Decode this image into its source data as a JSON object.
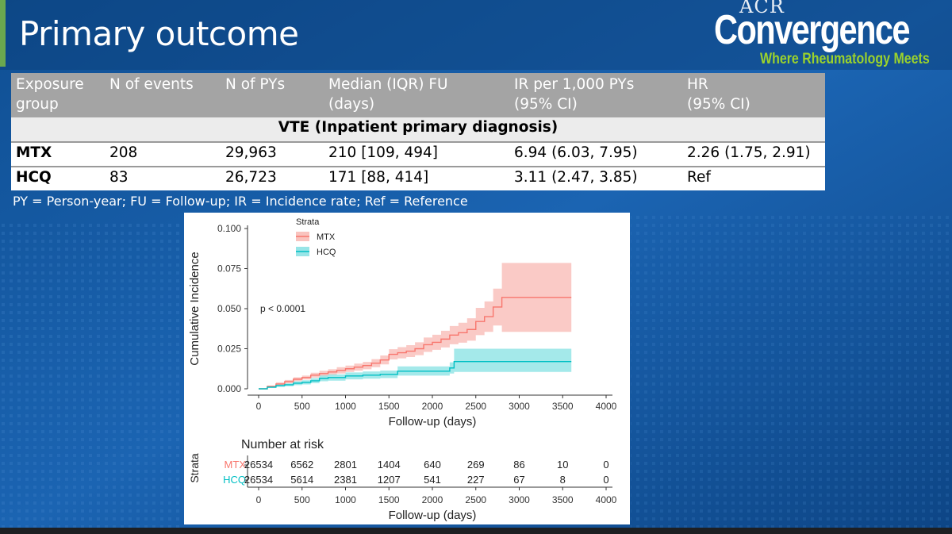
{
  "slide": {
    "title": "Primary outcome",
    "logo": {
      "line1": "ACR",
      "line2": "Convergence",
      "tagline": "Where Rheumatology Meets"
    },
    "footnote": "PY = Person-year; FU = Follow-up; IR = Incidence rate; Ref = Reference"
  },
  "table": {
    "headers": [
      [
        "Exposure",
        "group"
      ],
      [
        "N of events",
        ""
      ],
      [
        "N of PYs",
        ""
      ],
      [
        "Median (IQR) FU",
        "(days)"
      ],
      [
        "IR per 1,000 PYs",
        "(95% CI)"
      ],
      [
        "HR",
        "(95% CI)"
      ]
    ],
    "section": "VTE (Inpatient primary diagnosis)",
    "rows": [
      [
        "MTX",
        "208",
        "29,963",
        "210 [109, 494]",
        "6.94 (6.03, 7.95)",
        "2.26 (1.75, 2.91)"
      ],
      [
        "HCQ",
        "83",
        "26,723",
        "171 [88, 414]",
        "3.11 (2.47, 3.85)",
        "Ref"
      ]
    ]
  },
  "chart_data": {
    "type": "line",
    "legend_title": "Strata",
    "legend_position": "top-left",
    "xlabel": "Follow-up (days)",
    "ylabel": "Cumulative Incidence",
    "xlim": [
      0,
      4000
    ],
    "ylim": [
      0,
      0.1
    ],
    "x_ticks": [
      "0",
      "500",
      "1000",
      "1500",
      "2000",
      "2500",
      "3000",
      "3500",
      "4000"
    ],
    "y_ticks": [
      "0.000",
      "0.025",
      "0.050",
      "0.075",
      "0.100"
    ],
    "annotation": "p < 0.0001",
    "grid": false,
    "series": [
      {
        "name": "MTX",
        "color": "#f8766d",
        "band_color": "#f8b4ae",
        "points": [
          [
            0,
            0
          ],
          [
            100,
            0.0015
          ],
          [
            200,
            0.003
          ],
          [
            300,
            0.0045
          ],
          [
            400,
            0.006
          ],
          [
            500,
            0.007
          ],
          [
            600,
            0.0085
          ],
          [
            700,
            0.0095
          ],
          [
            800,
            0.0105
          ],
          [
            900,
            0.0115
          ],
          [
            1000,
            0.0125
          ],
          [
            1100,
            0.0135
          ],
          [
            1200,
            0.0145
          ],
          [
            1300,
            0.016
          ],
          [
            1400,
            0.018
          ],
          [
            1500,
            0.0215
          ],
          [
            1600,
            0.0225
          ],
          [
            1700,
            0.0235
          ],
          [
            1800,
            0.025
          ],
          [
            1900,
            0.0275
          ],
          [
            2000,
            0.029
          ],
          [
            2100,
            0.031
          ],
          [
            2200,
            0.0335
          ],
          [
            2300,
            0.035
          ],
          [
            2400,
            0.037
          ],
          [
            2500,
            0.042
          ],
          [
            2600,
            0.045
          ],
          [
            2700,
            0.051
          ],
          [
            2800,
            0.057
          ],
          [
            3000,
            0.057
          ],
          [
            3600,
            0.057
          ]
        ],
        "lower": [
          [
            0,
            0
          ],
          [
            100,
            0.001
          ],
          [
            200,
            0.002
          ],
          [
            300,
            0.0035
          ],
          [
            400,
            0.0048
          ],
          [
            500,
            0.0058
          ],
          [
            600,
            0.007
          ],
          [
            700,
            0.0078
          ],
          [
            800,
            0.0088
          ],
          [
            900,
            0.0095
          ],
          [
            1000,
            0.0105
          ],
          [
            1100,
            0.0113
          ],
          [
            1200,
            0.0122
          ],
          [
            1300,
            0.0135
          ],
          [
            1400,
            0.0152
          ],
          [
            1500,
            0.0183
          ],
          [
            1600,
            0.019
          ],
          [
            1700,
            0.0198
          ],
          [
            1800,
            0.021
          ],
          [
            1900,
            0.023
          ],
          [
            2000,
            0.0243
          ],
          [
            2100,
            0.0258
          ],
          [
            2200,
            0.0278
          ],
          [
            2300,
            0.0288
          ],
          [
            2400,
            0.03
          ],
          [
            2500,
            0.0335
          ],
          [
            2600,
            0.0355
          ],
          [
            2700,
            0.0395
          ],
          [
            2800,
            0.0355
          ],
          [
            3000,
            0.0355
          ],
          [
            3600,
            0.0355
          ]
        ],
        "upper": [
          [
            0,
            0
          ],
          [
            100,
            0.002
          ],
          [
            200,
            0.004
          ],
          [
            300,
            0.0055
          ],
          [
            400,
            0.0072
          ],
          [
            500,
            0.0082
          ],
          [
            600,
            0.01
          ],
          [
            700,
            0.0112
          ],
          [
            800,
            0.0122
          ],
          [
            900,
            0.0135
          ],
          [
            1000,
            0.0145
          ],
          [
            1100,
            0.0157
          ],
          [
            1200,
            0.0168
          ],
          [
            1300,
            0.0185
          ],
          [
            1400,
            0.0208
          ],
          [
            1500,
            0.0247
          ],
          [
            1600,
            0.026
          ],
          [
            1700,
            0.0272
          ],
          [
            1800,
            0.029
          ],
          [
            1900,
            0.032
          ],
          [
            2000,
            0.0337
          ],
          [
            2100,
            0.0362
          ],
          [
            2200,
            0.0392
          ],
          [
            2300,
            0.0412
          ],
          [
            2400,
            0.044
          ],
          [
            2500,
            0.0505
          ],
          [
            2600,
            0.0545
          ],
          [
            2700,
            0.0625
          ],
          [
            2800,
            0.0785
          ],
          [
            3000,
            0.0785
          ],
          [
            3600,
            0.0785
          ]
        ]
      },
      {
        "name": "HCQ",
        "color": "#00bfc4",
        "band_color": "#7edfe1",
        "points": [
          [
            0,
            0
          ],
          [
            100,
            0.001
          ],
          [
            200,
            0.002
          ],
          [
            300,
            0.0025
          ],
          [
            400,
            0.0035
          ],
          [
            500,
            0.004
          ],
          [
            600,
            0.005
          ],
          [
            700,
            0.0065
          ],
          [
            800,
            0.007
          ],
          [
            1000,
            0.008
          ],
          [
            1200,
            0.0085
          ],
          [
            1400,
            0.009
          ],
          [
            1600,
            0.011
          ],
          [
            2000,
            0.011
          ],
          [
            2200,
            0.013
          ],
          [
            2250,
            0.017
          ],
          [
            3600,
            0.017
          ]
        ],
        "lower": [
          [
            0,
            0
          ],
          [
            100,
            0.0005
          ],
          [
            200,
            0.0012
          ],
          [
            300,
            0.0016
          ],
          [
            400,
            0.0023
          ],
          [
            500,
            0.0027
          ],
          [
            600,
            0.0035
          ],
          [
            700,
            0.0047
          ],
          [
            800,
            0.0051
          ],
          [
            1000,
            0.0059
          ],
          [
            1200,
            0.0063
          ],
          [
            1400,
            0.0067
          ],
          [
            1600,
            0.0082
          ],
          [
            2000,
            0.0082
          ],
          [
            2200,
            0.0095
          ],
          [
            2250,
            0.0105
          ],
          [
            3600,
            0.0105
          ]
        ],
        "upper": [
          [
            0,
            0
          ],
          [
            100,
            0.0015
          ],
          [
            200,
            0.0028
          ],
          [
            300,
            0.0034
          ],
          [
            400,
            0.0047
          ],
          [
            500,
            0.0053
          ],
          [
            600,
            0.0066
          ],
          [
            700,
            0.0083
          ],
          [
            800,
            0.009
          ],
          [
            1000,
            0.0102
          ],
          [
            1200,
            0.0108
          ],
          [
            1400,
            0.0114
          ],
          [
            1600,
            0.014
          ],
          [
            2000,
            0.014
          ],
          [
            2200,
            0.0165
          ],
          [
            2250,
            0.025
          ],
          [
            3600,
            0.025
          ]
        ]
      }
    ],
    "risk_table": {
      "title": "Number at risk",
      "ylabel": "Strata",
      "xlabel": "Follow-up (days)",
      "times": [
        "0",
        "500",
        "1000",
        "1500",
        "2000",
        "2500",
        "3000",
        "3500",
        "4000"
      ],
      "rows": [
        {
          "name": "MTX",
          "color": "#f8766d",
          "values": [
            "26534",
            "6562",
            "2801",
            "1404",
            "640",
            "269",
            "86",
            "10",
            "0"
          ]
        },
        {
          "name": "HCQ",
          "color": "#00bfc4",
          "values": [
            "26534",
            "5614",
            "2381",
            "1207",
            "541",
            "227",
            "67",
            "8",
            "0"
          ]
        }
      ]
    }
  }
}
